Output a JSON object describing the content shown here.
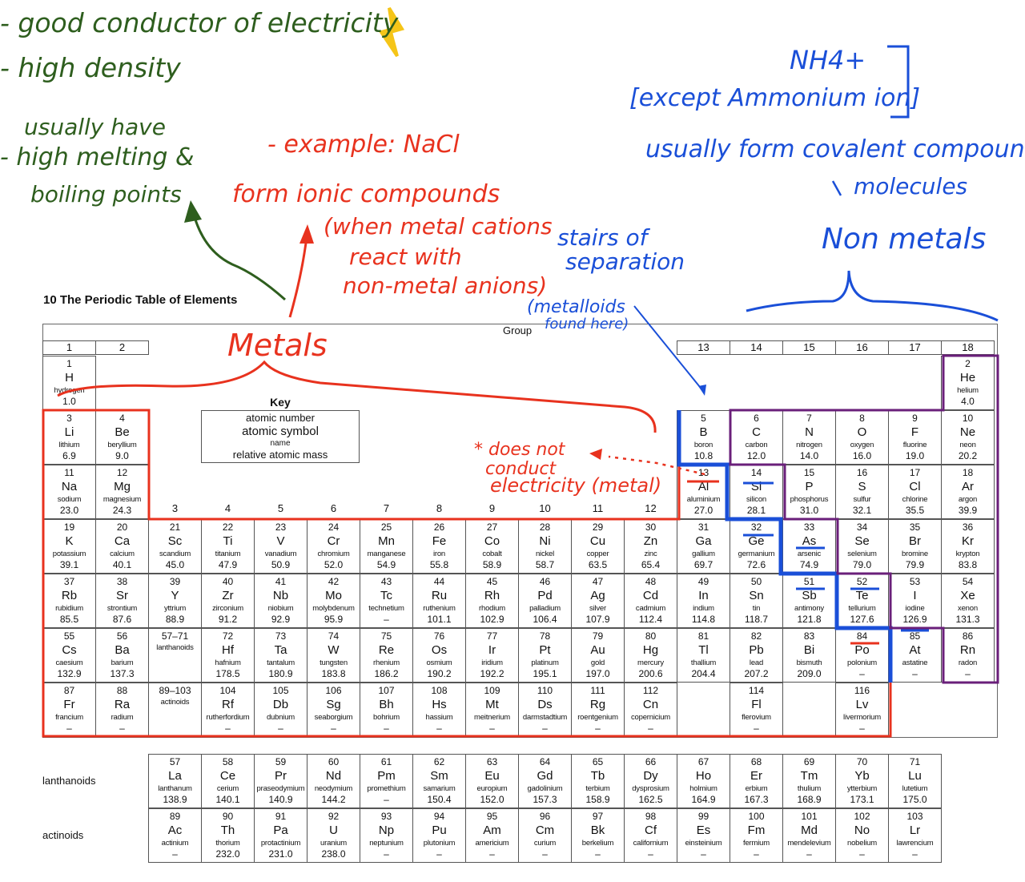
{
  "title": "10   The Periodic Table of Elements",
  "group_label": "Group",
  "group_numbers": [
    "1",
    "2",
    "3",
    "4",
    "5",
    "6",
    "7",
    "8",
    "9",
    "10",
    "11",
    "12",
    "13",
    "14",
    "15",
    "16",
    "17",
    "18"
  ],
  "key": {
    "title": "Key",
    "lines": [
      "atomic number",
      "atomic symbol",
      "name",
      "relative atomic mass"
    ]
  },
  "series_labels": {
    "lanthanoids": "lanthanoids",
    "actinoids": "actinoids"
  },
  "placeholders": {
    "lanthanoids": {
      "n": "57–71",
      "name": "lanthanoids"
    },
    "actinoids": {
      "n": "89–103",
      "name": "actinoids"
    }
  },
  "elements": [
    [
      "1",
      "H",
      "hydrogen",
      "1.0",
      1,
      1
    ],
    [
      "2",
      "He",
      "helium",
      "4.0",
      18,
      1
    ],
    [
      "3",
      "Li",
      "lithium",
      "6.9",
      1,
      2
    ],
    [
      "4",
      "Be",
      "beryllium",
      "9.0",
      2,
      2
    ],
    [
      "5",
      "B",
      "boron",
      "10.8",
      13,
      2
    ],
    [
      "6",
      "C",
      "carbon",
      "12.0",
      14,
      2
    ],
    [
      "7",
      "N",
      "nitrogen",
      "14.0",
      15,
      2
    ],
    [
      "8",
      "O",
      "oxygen",
      "16.0",
      16,
      2
    ],
    [
      "9",
      "F",
      "fluorine",
      "19.0",
      17,
      2
    ],
    [
      "10",
      "Ne",
      "neon",
      "20.2",
      18,
      2
    ],
    [
      "11",
      "Na",
      "sodium",
      "23.0",
      1,
      3
    ],
    [
      "12",
      "Mg",
      "magnesium",
      "24.3",
      2,
      3
    ],
    [
      "13",
      "Al",
      "aluminium",
      "27.0",
      13,
      3
    ],
    [
      "14",
      "Si",
      "silicon",
      "28.1",
      14,
      3
    ],
    [
      "15",
      "P",
      "phosphorus",
      "31.0",
      15,
      3
    ],
    [
      "16",
      "S",
      "sulfur",
      "32.1",
      16,
      3
    ],
    [
      "17",
      "Cl",
      "chlorine",
      "35.5",
      17,
      3
    ],
    [
      "18",
      "Ar",
      "argon",
      "39.9",
      18,
      3
    ],
    [
      "19",
      "K",
      "potassium",
      "39.1",
      1,
      4
    ],
    [
      "20",
      "Ca",
      "calcium",
      "40.1",
      2,
      4
    ],
    [
      "21",
      "Sc",
      "scandium",
      "45.0",
      3,
      4
    ],
    [
      "22",
      "Ti",
      "titanium",
      "47.9",
      4,
      4
    ],
    [
      "23",
      "V",
      "vanadium",
      "50.9",
      5,
      4
    ],
    [
      "24",
      "Cr",
      "chromium",
      "52.0",
      6,
      4
    ],
    [
      "25",
      "Mn",
      "manganese",
      "54.9",
      7,
      4
    ],
    [
      "26",
      "Fe",
      "iron",
      "55.8",
      8,
      4
    ],
    [
      "27",
      "Co",
      "cobalt",
      "58.9",
      9,
      4
    ],
    [
      "28",
      "Ni",
      "nickel",
      "58.7",
      10,
      4
    ],
    [
      "29",
      "Cu",
      "copper",
      "63.5",
      11,
      4
    ],
    [
      "30",
      "Zn",
      "zinc",
      "65.4",
      12,
      4
    ],
    [
      "31",
      "Ga",
      "gallium",
      "69.7",
      13,
      4
    ],
    [
      "32",
      "Ge",
      "germanium",
      "72.6",
      14,
      4
    ],
    [
      "33",
      "As",
      "arsenic",
      "74.9",
      15,
      4
    ],
    [
      "34",
      "Se",
      "selenium",
      "79.0",
      16,
      4
    ],
    [
      "35",
      "Br",
      "bromine",
      "79.9",
      17,
      4
    ],
    [
      "36",
      "Kr",
      "krypton",
      "83.8",
      18,
      4
    ],
    [
      "37",
      "Rb",
      "rubidium",
      "85.5",
      1,
      5
    ],
    [
      "38",
      "Sr",
      "strontium",
      "87.6",
      2,
      5
    ],
    [
      "39",
      "Y",
      "yttrium",
      "88.9",
      3,
      5
    ],
    [
      "40",
      "Zr",
      "zirconium",
      "91.2",
      4,
      5
    ],
    [
      "41",
      "Nb",
      "niobium",
      "92.9",
      5,
      5
    ],
    [
      "42",
      "Mo",
      "molybdenum",
      "95.9",
      6,
      5
    ],
    [
      "43",
      "Tc",
      "technetium",
      "–",
      7,
      5
    ],
    [
      "44",
      "Ru",
      "ruthenium",
      "101.1",
      8,
      5
    ],
    [
      "45",
      "Rh",
      "rhodium",
      "102.9",
      9,
      5
    ],
    [
      "46",
      "Pd",
      "palladium",
      "106.4",
      10,
      5
    ],
    [
      "47",
      "Ag",
      "silver",
      "107.9",
      11,
      5
    ],
    [
      "48",
      "Cd",
      "cadmium",
      "112.4",
      12,
      5
    ],
    [
      "49",
      "In",
      "indium",
      "114.8",
      13,
      5
    ],
    [
      "50",
      "Sn",
      "tin",
      "118.7",
      14,
      5
    ],
    [
      "51",
      "Sb",
      "antimony",
      "121.8",
      15,
      5
    ],
    [
      "52",
      "Te",
      "tellurium",
      "127.6",
      16,
      5
    ],
    [
      "53",
      "I",
      "iodine",
      "126.9",
      17,
      5
    ],
    [
      "54",
      "Xe",
      "xenon",
      "131.3",
      18,
      5
    ],
    [
      "55",
      "Cs",
      "caesium",
      "132.9",
      1,
      6
    ],
    [
      "56",
      "Ba",
      "barium",
      "137.3",
      2,
      6
    ],
    [
      "72",
      "Hf",
      "hafnium",
      "178.5",
      4,
      6
    ],
    [
      "73",
      "Ta",
      "tantalum",
      "180.9",
      5,
      6
    ],
    [
      "74",
      "W",
      "tungsten",
      "183.8",
      6,
      6
    ],
    [
      "75",
      "Re",
      "rhenium",
      "186.2",
      7,
      6
    ],
    [
      "76",
      "Os",
      "osmium",
      "190.2",
      8,
      6
    ],
    [
      "77",
      "Ir",
      "iridium",
      "192.2",
      9,
      6
    ],
    [
      "78",
      "Pt",
      "platinum",
      "195.1",
      10,
      6
    ],
    [
      "79",
      "Au",
      "gold",
      "197.0",
      11,
      6
    ],
    [
      "80",
      "Hg",
      "mercury",
      "200.6",
      12,
      6
    ],
    [
      "81",
      "Tl",
      "thallium",
      "204.4",
      13,
      6
    ],
    [
      "82",
      "Pb",
      "lead",
      "207.2",
      14,
      6
    ],
    [
      "83",
      "Bi",
      "bismuth",
      "209.0",
      15,
      6
    ],
    [
      "84",
      "Po",
      "polonium",
      "–",
      16,
      6
    ],
    [
      "85",
      "At",
      "astatine",
      "–",
      17,
      6
    ],
    [
      "86",
      "Rn",
      "radon",
      "–",
      18,
      6
    ],
    [
      "87",
      "Fr",
      "francium",
      "–",
      1,
      7
    ],
    [
      "88",
      "Ra",
      "radium",
      "–",
      2,
      7
    ],
    [
      "104",
      "Rf",
      "rutherfordium",
      "–",
      4,
      7
    ],
    [
      "105",
      "Db",
      "dubnium",
      "–",
      5,
      7
    ],
    [
      "106",
      "Sg",
      "seaborgium",
      "–",
      6,
      7
    ],
    [
      "107",
      "Bh",
      "bohrium",
      "–",
      7,
      7
    ],
    [
      "108",
      "Hs",
      "hassium",
      "–",
      8,
      7
    ],
    [
      "109",
      "Mt",
      "meitnerium",
      "–",
      9,
      7
    ],
    [
      "110",
      "Ds",
      "darmstadtium",
      "–",
      10,
      7
    ],
    [
      "111",
      "Rg",
      "roentgenium",
      "–",
      11,
      7
    ],
    [
      "112",
      "Cn",
      "copernicium",
      "–",
      12,
      7
    ],
    [
      "114",
      "Fl",
      "flerovium",
      "–",
      14,
      7
    ],
    [
      "116",
      "Lv",
      "livermorium",
      "–",
      16,
      7
    ]
  ],
  "lanthanoids": [
    [
      "57",
      "La",
      "lanthanum",
      "138.9"
    ],
    [
      "58",
      "Ce",
      "cerium",
      "140.1"
    ],
    [
      "59",
      "Pr",
      "praseodymium",
      "140.9"
    ],
    [
      "60",
      "Nd",
      "neodymium",
      "144.2"
    ],
    [
      "61",
      "Pm",
      "promethium",
      "–"
    ],
    [
      "62",
      "Sm",
      "samarium",
      "150.4"
    ],
    [
      "63",
      "Eu",
      "europium",
      "152.0"
    ],
    [
      "64",
      "Gd",
      "gadolinium",
      "157.3"
    ],
    [
      "65",
      "Tb",
      "terbium",
      "158.9"
    ],
    [
      "66",
      "Dy",
      "dysprosium",
      "162.5"
    ],
    [
      "67",
      "Ho",
      "holmium",
      "164.9"
    ],
    [
      "68",
      "Er",
      "erbium",
      "167.3"
    ],
    [
      "69",
      "Tm",
      "thulium",
      "168.9"
    ],
    [
      "70",
      "Yb",
      "ytterbium",
      "173.1"
    ],
    [
      "71",
      "Lu",
      "lutetium",
      "175.0"
    ]
  ],
  "actinoids": [
    [
      "89",
      "Ac",
      "actinium",
      "–"
    ],
    [
      "90",
      "Th",
      "thorium",
      "232.0"
    ],
    [
      "91",
      "Pa",
      "protactinium",
      "231.0"
    ],
    [
      "92",
      "U",
      "uranium",
      "238.0"
    ],
    [
      "93",
      "Np",
      "neptunium",
      "–"
    ],
    [
      "94",
      "Pu",
      "plutonium",
      "–"
    ],
    [
      "95",
      "Am",
      "americium",
      "–"
    ],
    [
      "96",
      "Cm",
      "curium",
      "–"
    ],
    [
      "97",
      "Bk",
      "berkelium",
      "–"
    ],
    [
      "98",
      "Cf",
      "californium",
      "–"
    ],
    [
      "99",
      "Es",
      "einsteinium",
      "–"
    ],
    [
      "100",
      "Fm",
      "fermium",
      "–"
    ],
    [
      "101",
      "Md",
      "mendelevium",
      "–"
    ],
    [
      "102",
      "No",
      "nobelium",
      "–"
    ],
    [
      "103",
      "Lr",
      "lawrencium",
      "–"
    ]
  ],
  "annotations": {
    "green": [
      "- good conductor of electricity",
      "- high density",
      "usually have",
      "- high melting &",
      "boiling points"
    ],
    "red": [
      "- example: NaCl",
      "form ionic compounds",
      "(when metal cations",
      "react with",
      "non-metal anions)",
      "Metals",
      "* does not",
      "conduct",
      "electricity (metal)"
    ],
    "blue": [
      "NH4+",
      "[except Ammonium ion]",
      "usually form covalent compounds",
      "molecules",
      "Non metals",
      "stairs of",
      "separation",
      "(metalloids",
      "found here)"
    ]
  },
  "colors": {
    "green": "#2e5e1e",
    "red": "#e8321e",
    "blue": "#1a4fd8",
    "purple": "#6a1f7a",
    "yellow": "#f5c518"
  }
}
